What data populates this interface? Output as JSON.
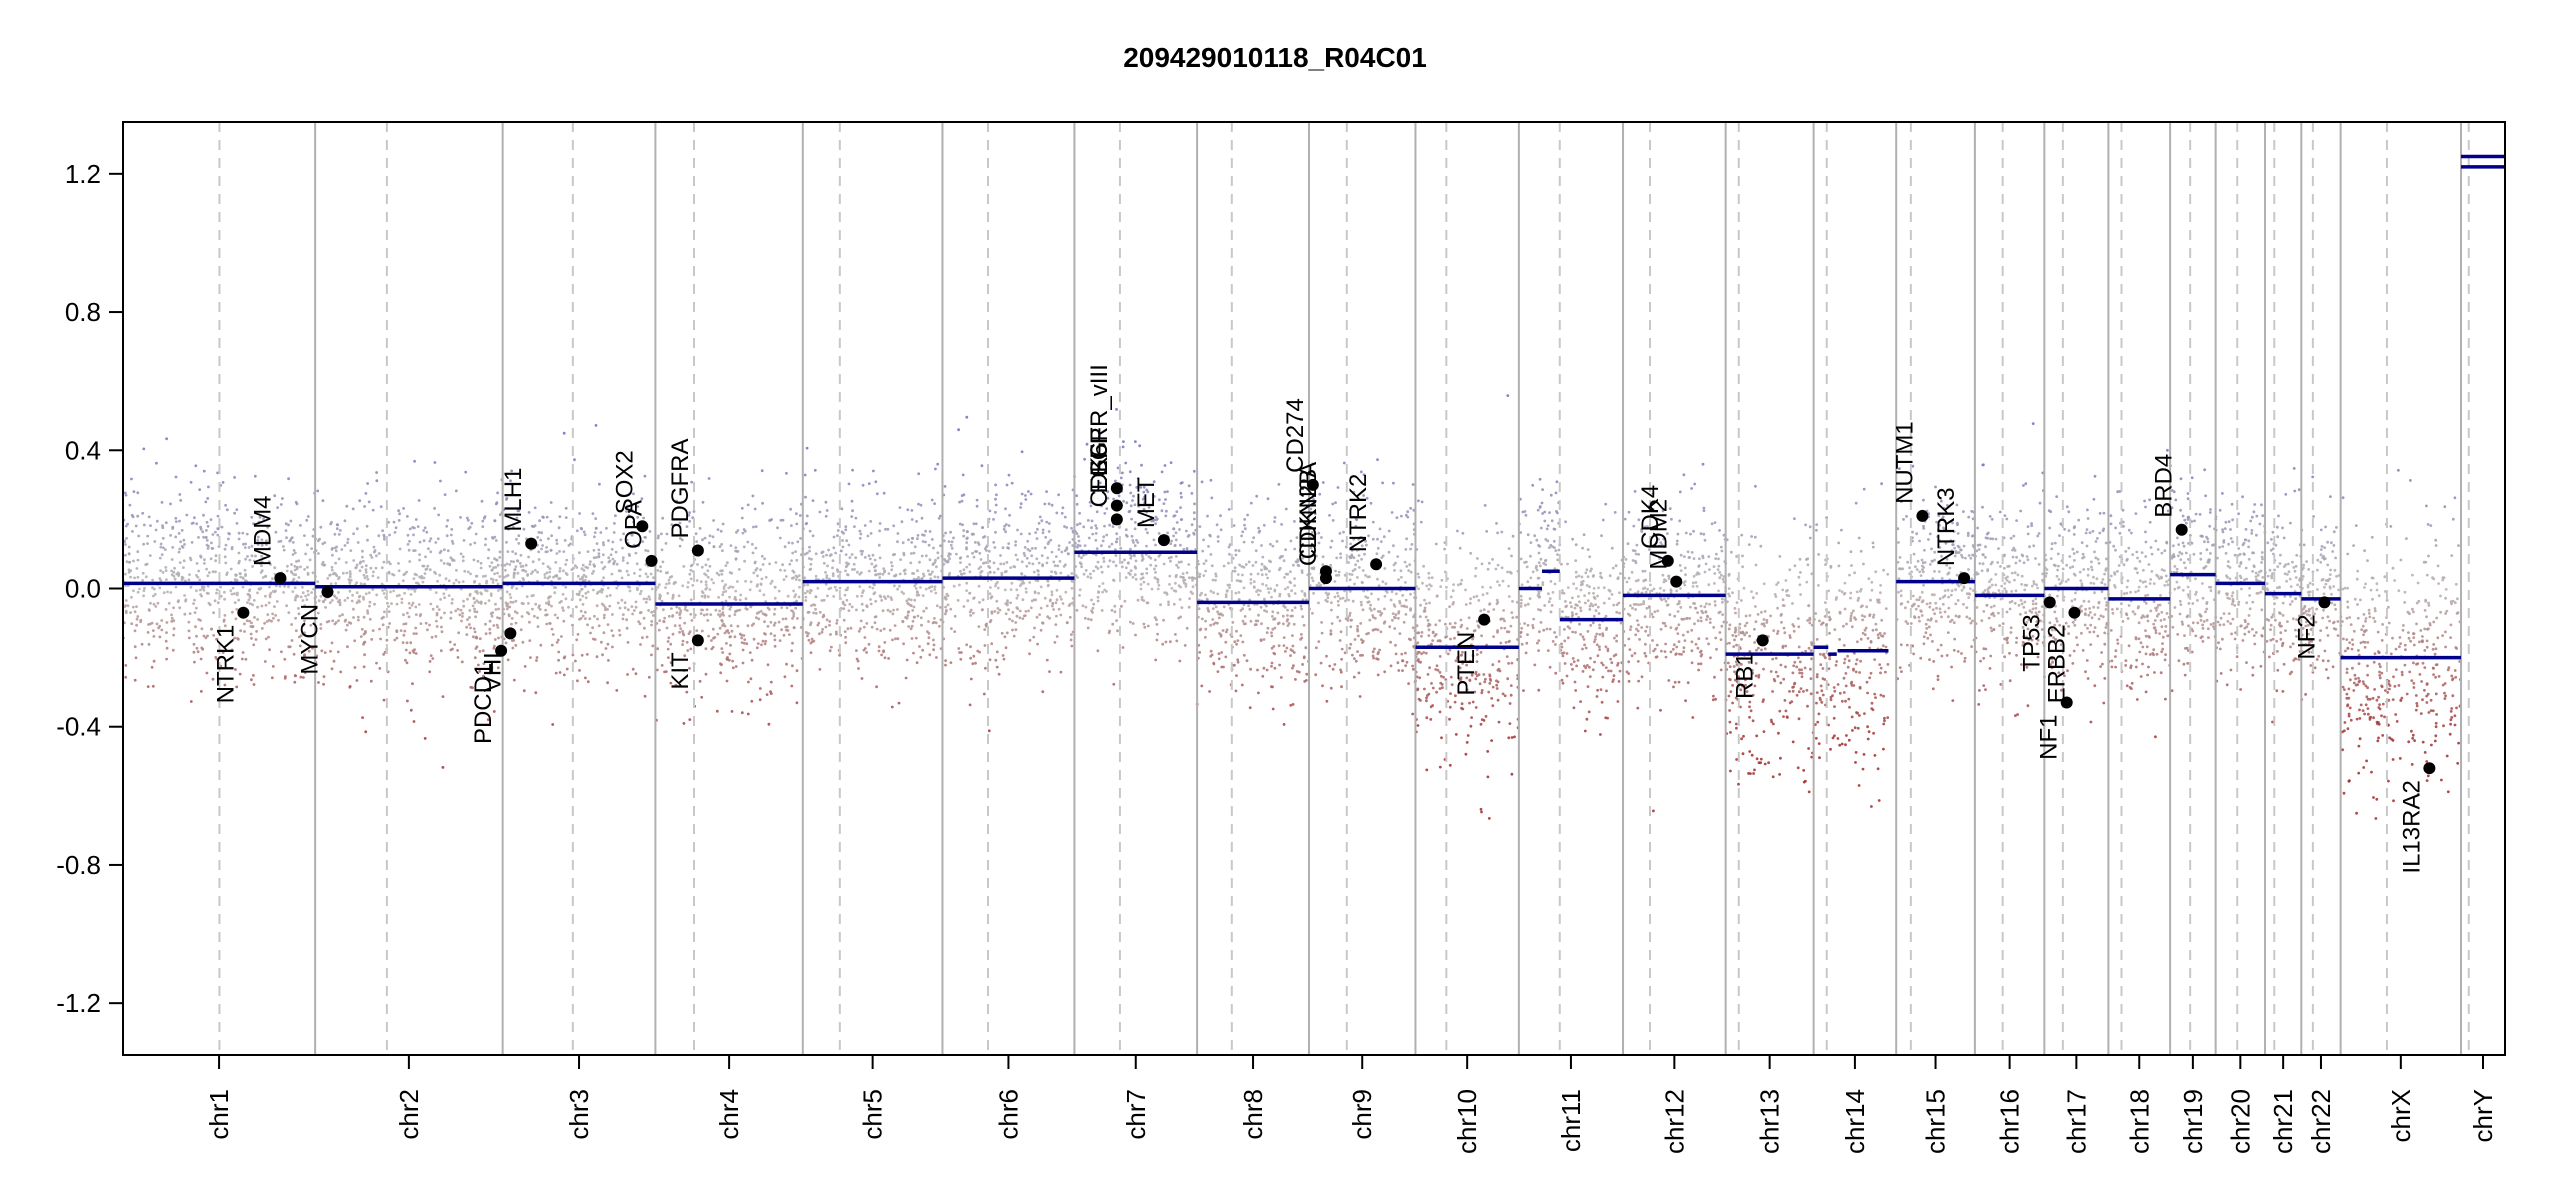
{
  "chart_data": {
    "type": "scatter",
    "title": "209429010118_R04C01",
    "xlabel": "",
    "ylabel": "",
    "ylim": [
      -1.35,
      1.35
    ],
    "y_ticks": [
      1.2,
      0.8,
      0.4,
      0.0,
      -0.4,
      -0.8,
      -1.2
    ],
    "y_tick_labels": [
      "1.2",
      "0.8",
      "0.4",
      "0.0",
      "-0.4",
      "-0.8",
      "-1.2"
    ],
    "grid": false,
    "colors": {
      "gain": "#6a6fc0",
      "neutral": "#b8b0b0",
      "loss": "#a32a2a",
      "segment": "#00008b",
      "boundary": "#b0b0b0",
      "centromere": "#c8c8c8",
      "gene_point": "#000000"
    },
    "chromosomes": [
      {
        "name": "chr1",
        "length_mb": 249,
        "centromere_mb": 125
      },
      {
        "name": "chr2",
        "length_mb": 243,
        "centromere_mb": 93
      },
      {
        "name": "chr3",
        "length_mb": 198,
        "centromere_mb": 91
      },
      {
        "name": "chr4",
        "length_mb": 191,
        "centromere_mb": 50
      },
      {
        "name": "chr5",
        "length_mb": 181,
        "centromere_mb": 48
      },
      {
        "name": "chr6",
        "length_mb": 171,
        "centromere_mb": 59
      },
      {
        "name": "chr7",
        "length_mb": 159,
        "centromere_mb": 59
      },
      {
        "name": "chr8",
        "length_mb": 145,
        "centromere_mb": 45
      },
      {
        "name": "chr9",
        "length_mb": 138,
        "centromere_mb": 49
      },
      {
        "name": "chr10",
        "length_mb": 134,
        "centromere_mb": 40
      },
      {
        "name": "chr11",
        "length_mb": 135,
        "centromere_mb": 53
      },
      {
        "name": "chr12",
        "length_mb": 133,
        "centromere_mb": 35
      },
      {
        "name": "chr13",
        "length_mb": 114,
        "centromere_mb": 17
      },
      {
        "name": "chr14",
        "length_mb": 107,
        "centromere_mb": 17
      },
      {
        "name": "chr15",
        "length_mb": 102,
        "centromere_mb": 19
      },
      {
        "name": "chr16",
        "length_mb": 90,
        "centromere_mb": 36
      },
      {
        "name": "chr17",
        "length_mb": 83,
        "centromere_mb": 24
      },
      {
        "name": "chr18",
        "length_mb": 80,
        "centromere_mb": 17
      },
      {
        "name": "chr19",
        "length_mb": 59,
        "centromere_mb": 26
      },
      {
        "name": "chr20",
        "length_mb": 64,
        "centromere_mb": 28
      },
      {
        "name": "chr21",
        "length_mb": 47,
        "centromere_mb": 12
      },
      {
        "name": "chr22",
        "length_mb": 51,
        "centromere_mb": 15
      },
      {
        "name": "chrX",
        "length_mb": 156,
        "centromere_mb": 60
      },
      {
        "name": "chrY",
        "length_mb": 57,
        "centromere_mb": 10
      }
    ],
    "segments": [
      {
        "chr": "chr1",
        "start": 0,
        "end": 249,
        "value": 0.015
      },
      {
        "chr": "chr2",
        "start": 0,
        "end": 243,
        "value": 0.005
      },
      {
        "chr": "chr3",
        "start": 0,
        "end": 198,
        "value": 0.015
      },
      {
        "chr": "chr4",
        "start": 0,
        "end": 191,
        "value": -0.045
      },
      {
        "chr": "chr5",
        "start": 0,
        "end": 181,
        "value": 0.02
      },
      {
        "chr": "chr6",
        "start": 0,
        "end": 171,
        "value": 0.03
      },
      {
        "chr": "chr7",
        "start": 0,
        "end": 159,
        "value": 0.105
      },
      {
        "chr": "chr8",
        "start": 0,
        "end": 145,
        "value": -0.04
      },
      {
        "chr": "chr9",
        "start": 0,
        "end": 138,
        "value": 0.0
      },
      {
        "chr": "chr10",
        "start": 0,
        "end": 134,
        "value": -0.17
      },
      {
        "chr": "chr11",
        "start": 0,
        "end": 30,
        "value": 0.0
      },
      {
        "chr": "chr11",
        "start": 30,
        "end": 53,
        "value": 0.05
      },
      {
        "chr": "chr11",
        "start": 53,
        "end": 135,
        "value": -0.09
      },
      {
        "chr": "chr12",
        "start": 0,
        "end": 133,
        "value": -0.02
      },
      {
        "chr": "chr13",
        "start": 0,
        "end": 114,
        "value": -0.19
      },
      {
        "chr": "chr14",
        "start": 0,
        "end": 19,
        "value": -0.17
      },
      {
        "chr": "chr14",
        "start": 19,
        "end": 30,
        "value": -0.19
      },
      {
        "chr": "chr14",
        "start": 31,
        "end": 97,
        "value": -0.18
      },
      {
        "chr": "chr15",
        "start": 0,
        "end": 102,
        "value": 0.02
      },
      {
        "chr": "chr16",
        "start": 0,
        "end": 90,
        "value": -0.02
      },
      {
        "chr": "chr17",
        "start": 0,
        "end": 83,
        "value": 0.0
      },
      {
        "chr": "chr18",
        "start": 0,
        "end": 80,
        "value": -0.03
      },
      {
        "chr": "chr19",
        "start": 0,
        "end": 59,
        "value": 0.04
      },
      {
        "chr": "chr20",
        "start": 0,
        "end": 64,
        "value": 0.015
      },
      {
        "chr": "chr21",
        "start": 0,
        "end": 47,
        "value": -0.015
      },
      {
        "chr": "chr22",
        "start": 0,
        "end": 51,
        "value": -0.03
      },
      {
        "chr": "chrX",
        "start": 0,
        "end": 156,
        "value": -0.2
      },
      {
        "chr": "chrY",
        "start": 0,
        "end": 57,
        "value": 1.22
      },
      {
        "chr": "chrY",
        "start": 0,
        "end": 57,
        "value": 1.25
      }
    ],
    "genes": [
      {
        "name": "NTRK1",
        "chr": "chr1",
        "pos_mb": 156,
        "value": -0.07
      },
      {
        "name": "MDM4",
        "chr": "chr1",
        "pos_mb": 204,
        "value": 0.03
      },
      {
        "name": "MYCN",
        "chr": "chr2",
        "pos_mb": 16,
        "value": -0.01
      },
      {
        "name": "PDCD1",
        "chr": "chr2",
        "pos_mb": 241,
        "value": -0.18
      },
      {
        "name": "VHL",
        "chr": "chr3",
        "pos_mb": 10,
        "value": -0.13
      },
      {
        "name": "MLH1",
        "chr": "chr3",
        "pos_mb": 37,
        "value": 0.13
      },
      {
        "name": "SOX2",
        "chr": "chr3",
        "pos_mb": 181,
        "value": 0.18
      },
      {
        "name": "OPA",
        "chr": "chr3",
        "pos_mb": 193,
        "value": 0.08
      },
      {
        "name": "PDGFRA",
        "chr": "chr4",
        "pos_mb": 55,
        "value": 0.11
      },
      {
        "name": "KIT",
        "chr": "chr4",
        "pos_mb": 55,
        "value": -0.15
      },
      {
        "name": "EGFR_vIII",
        "chr": "chr7",
        "pos_mb": 55,
        "value": 0.29
      },
      {
        "name": "EGFR",
        "chr": "chr7",
        "pos_mb": 55,
        "value": 0.24
      },
      {
        "name": "CDK6",
        "chr": "chr7",
        "pos_mb": 55,
        "value": 0.2
      },
      {
        "name": "MET",
        "chr": "chr7",
        "pos_mb": 116,
        "value": 0.14
      },
      {
        "name": "CD274",
        "chr": "chr9",
        "pos_mb": 5,
        "value": 0.3
      },
      {
        "name": "CDKN2A",
        "chr": "chr9",
        "pos_mb": 22,
        "value": 0.05
      },
      {
        "name": "CDKN2B",
        "chr": "chr9",
        "pos_mb": 22,
        "value": 0.03
      },
      {
        "name": "NTRK2",
        "chr": "chr9",
        "pos_mb": 87,
        "value": 0.07
      },
      {
        "name": "PTEN",
        "chr": "chr10",
        "pos_mb": 89,
        "value": -0.09
      },
      {
        "name": "CDK4",
        "chr": "chr12",
        "pos_mb": 58,
        "value": 0.08
      },
      {
        "name": "MDM2",
        "chr": "chr12",
        "pos_mb": 69,
        "value": 0.02
      },
      {
        "name": "RB1",
        "chr": "chr13",
        "pos_mb": 48,
        "value": -0.15
      },
      {
        "name": "NUTM1",
        "chr": "chr15",
        "pos_mb": 34,
        "value": 0.21
      },
      {
        "name": "NTRK3",
        "chr": "chr15",
        "pos_mb": 88,
        "value": 0.03
      },
      {
        "name": "TP53",
        "chr": "chr17",
        "pos_mb": 7,
        "value": -0.04
      },
      {
        "name": "NF1",
        "chr": "chr17",
        "pos_mb": 29,
        "value": -0.33
      },
      {
        "name": "ERBB2",
        "chr": "chr17",
        "pos_mb": 39,
        "value": -0.07
      },
      {
        "name": "BRD4",
        "chr": "chr19",
        "pos_mb": 15,
        "value": 0.17
      },
      {
        "name": "NF2",
        "chr": "chr22",
        "pos_mb": 30,
        "value": -0.04
      },
      {
        "name": "IL13RA2",
        "chr": "chrX",
        "pos_mb": 115,
        "value": -0.52
      }
    ]
  }
}
